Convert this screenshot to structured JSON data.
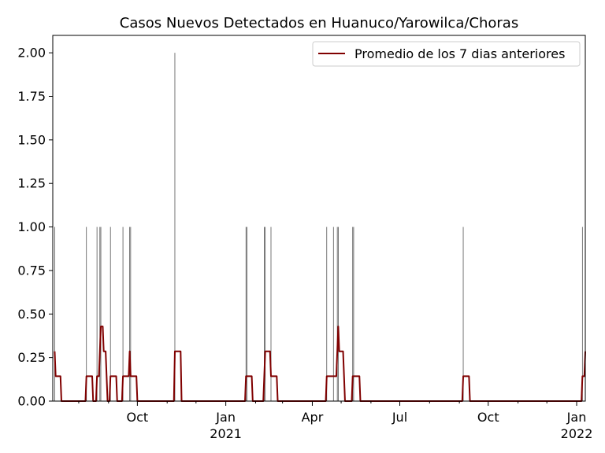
{
  "chart_data": {
    "type": "bar+line",
    "title": "Casos Nuevos Detectados en Huanuco/Yarowilca/Choras",
    "xlabel": "",
    "ylabel": "",
    "ylim": [
      0,
      2.1
    ],
    "xlim": [
      "2020-07-05",
      "2022-01-10"
    ],
    "y_ticks": [
      {
        "v": 0.0,
        "label": "0.00"
      },
      {
        "v": 0.25,
        "label": "0.25"
      },
      {
        "v": 0.5,
        "label": "0.50"
      },
      {
        "v": 0.75,
        "label": "0.75"
      },
      {
        "v": 1.0,
        "label": "1.00"
      },
      {
        "v": 1.25,
        "label": "1.25"
      },
      {
        "v": 1.5,
        "label": "1.50"
      },
      {
        "v": 1.75,
        "label": "1.75"
      },
      {
        "v": 2.0,
        "label": "2.00"
      }
    ],
    "x_ticks": [
      {
        "date": "2020-10-01",
        "label": "Oct",
        "label2": ""
      },
      {
        "date": "2021-01-01",
        "label": "Jan",
        "label2": "2021"
      },
      {
        "date": "2021-04-01",
        "label": "Apr",
        "label2": ""
      },
      {
        "date": "2021-07-01",
        "label": "Jul",
        "label2": ""
      },
      {
        "date": "2021-10-01",
        "label": "Oct",
        "label2": ""
      },
      {
        "date": "2022-01-01",
        "label": "Jan",
        "label2": "2022"
      }
    ],
    "minor_x_ticks": [
      "2020-07-01",
      "2020-08-01",
      "2020-09-01",
      "2020-11-01",
      "2020-12-01",
      "2021-02-01",
      "2021-03-01",
      "2021-05-01",
      "2021-06-01",
      "2021-08-01",
      "2021-09-01",
      "2021-11-01",
      "2021-12-01"
    ],
    "series": [
      {
        "kind": "bar",
        "color": "#555555",
        "points": [
          {
            "x": "2020-07-07",
            "y": 1
          },
          {
            "x": "2020-08-09",
            "y": 1
          },
          {
            "x": "2020-08-20",
            "y": 1
          },
          {
            "x": "2020-08-23",
            "y": 1
          },
          {
            "x": "2020-08-24",
            "y": 1
          },
          {
            "x": "2020-09-03",
            "y": 1
          },
          {
            "x": "2020-09-16",
            "y": 1
          },
          {
            "x": "2020-09-23",
            "y": 1
          },
          {
            "x": "2020-09-24",
            "y": 1
          },
          {
            "x": "2020-11-09",
            "y": 2
          },
          {
            "x": "2021-01-22",
            "y": 1
          },
          {
            "x": "2021-01-23",
            "y": 1
          },
          {
            "x": "2021-02-10",
            "y": 1
          },
          {
            "x": "2021-02-11",
            "y": 1
          },
          {
            "x": "2021-02-17",
            "y": 1
          },
          {
            "x": "2021-04-16",
            "y": 1
          },
          {
            "x": "2021-04-23",
            "y": 1
          },
          {
            "x": "2021-04-27",
            "y": 1
          },
          {
            "x": "2021-04-28",
            "y": 1
          },
          {
            "x": "2021-05-13",
            "y": 1
          },
          {
            "x": "2021-05-14",
            "y": 1
          },
          {
            "x": "2021-09-05",
            "y": 1
          },
          {
            "x": "2022-01-07",
            "y": 1
          },
          {
            "x": "2022-01-10",
            "y": 1
          }
        ]
      },
      {
        "kind": "line",
        "name": "Promedio de los 7 dias anteriores",
        "color": "#800000",
        "points": [
          {
            "x": "2020-07-07",
            "y": 0.2857
          },
          {
            "x": "2020-07-08",
            "y": 0.1429
          },
          {
            "x": "2020-07-13",
            "y": 0.1429
          },
          {
            "x": "2020-07-14",
            "y": 0.0
          },
          {
            "x": "2020-08-08",
            "y": 0.0
          },
          {
            "x": "2020-08-09",
            "y": 0.1429
          },
          {
            "x": "2020-08-15",
            "y": 0.1429
          },
          {
            "x": "2020-08-16",
            "y": 0.0
          },
          {
            "x": "2020-08-19",
            "y": 0.0
          },
          {
            "x": "2020-08-20",
            "y": 0.1429
          },
          {
            "x": "2020-08-22",
            "y": 0.1429
          },
          {
            "x": "2020-08-23",
            "y": 0.2857
          },
          {
            "x": "2020-08-24",
            "y": 0.4286
          },
          {
            "x": "2020-08-26",
            "y": 0.4286
          },
          {
            "x": "2020-08-27",
            "y": 0.2857
          },
          {
            "x": "2020-08-29",
            "y": 0.2857
          },
          {
            "x": "2020-08-30",
            "y": 0.1429
          },
          {
            "x": "2020-08-31",
            "y": 0.0
          },
          {
            "x": "2020-09-02",
            "y": 0.0
          },
          {
            "x": "2020-09-03",
            "y": 0.1429
          },
          {
            "x": "2020-09-09",
            "y": 0.1429
          },
          {
            "x": "2020-09-10",
            "y": 0.0
          },
          {
            "x": "2020-09-15",
            "y": 0.0
          },
          {
            "x": "2020-09-16",
            "y": 0.1429
          },
          {
            "x": "2020-09-22",
            "y": 0.1429
          },
          {
            "x": "2020-09-23",
            "y": 0.2857
          },
          {
            "x": "2020-09-24",
            "y": 0.1429
          },
          {
            "x": "2020-09-30",
            "y": 0.1429
          },
          {
            "x": "2020-10-01",
            "y": 0.0
          },
          {
            "x": "2020-11-08",
            "y": 0.0
          },
          {
            "x": "2020-11-09",
            "y": 0.2857
          },
          {
            "x": "2020-11-15",
            "y": 0.2857
          },
          {
            "x": "2020-11-16",
            "y": 0.0
          },
          {
            "x": "2021-01-21",
            "y": 0.0
          },
          {
            "x": "2021-01-22",
            "y": 0.1429
          },
          {
            "x": "2021-01-28",
            "y": 0.1429
          },
          {
            "x": "2021-01-29",
            "y": 0.0
          },
          {
            "x": "2021-02-09",
            "y": 0.0
          },
          {
            "x": "2021-02-10",
            "y": 0.1429
          },
          {
            "x": "2021-02-11",
            "y": 0.2857
          },
          {
            "x": "2021-02-16",
            "y": 0.2857
          },
          {
            "x": "2021-02-17",
            "y": 0.1429
          },
          {
            "x": "2021-02-23",
            "y": 0.1429
          },
          {
            "x": "2021-02-24",
            "y": 0.0
          },
          {
            "x": "2021-04-15",
            "y": 0.0
          },
          {
            "x": "2021-04-16",
            "y": 0.1429
          },
          {
            "x": "2021-04-26",
            "y": 0.1429
          },
          {
            "x": "2021-04-27",
            "y": 0.2857
          },
          {
            "x": "2021-04-28",
            "y": 0.4286
          },
          {
            "x": "2021-04-29",
            "y": 0.2857
          },
          {
            "x": "2021-05-03",
            "y": 0.2857
          },
          {
            "x": "2021-05-04",
            "y": 0.1429
          },
          {
            "x": "2021-05-05",
            "y": 0.0
          },
          {
            "x": "2021-05-12",
            "y": 0.0
          },
          {
            "x": "2021-05-13",
            "y": 0.1429
          },
          {
            "x": "2021-05-20",
            "y": 0.1429
          },
          {
            "x": "2021-05-21",
            "y": 0.0
          },
          {
            "x": "2021-09-04",
            "y": 0.0
          },
          {
            "x": "2021-09-05",
            "y": 0.1429
          },
          {
            "x": "2021-09-11",
            "y": 0.1429
          },
          {
            "x": "2021-09-12",
            "y": 0.0
          },
          {
            "x": "2022-01-06",
            "y": 0.0
          },
          {
            "x": "2022-01-07",
            "y": 0.1429
          },
          {
            "x": "2022-01-09",
            "y": 0.1429
          },
          {
            "x": "2022-01-10",
            "y": 0.2857
          }
        ]
      }
    ],
    "legend": {
      "placement": "top-right",
      "label": "Promedio de los 7 dias anteriores"
    },
    "grid": false
  }
}
